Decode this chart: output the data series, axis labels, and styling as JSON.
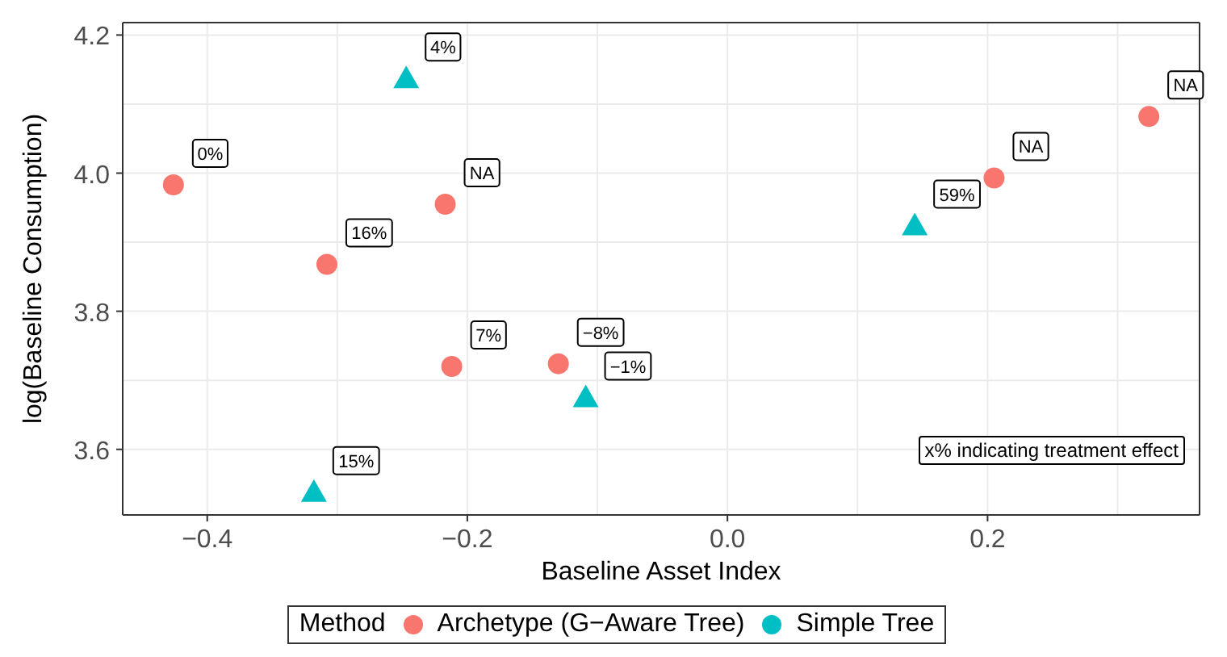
{
  "chart_data": {
    "type": "scatter",
    "xlabel": "Baseline Asset Index",
    "ylabel": "log(Baseline Consumption)",
    "legend_title": "Method",
    "xlim": [
      -0.465,
      0.363
    ],
    "ylim": [
      3.505,
      4.218
    ],
    "xticks": [
      {
        "value": -0.4,
        "label": "−0.4"
      },
      {
        "value": -0.3,
        "label": null
      },
      {
        "value": -0.2,
        "label": "−0.2"
      },
      {
        "value": -0.1,
        "label": null
      },
      {
        "value": 0,
        "label": "0.0"
      },
      {
        "value": 0.1,
        "label": null
      },
      {
        "value": 0.2,
        "label": "0.2"
      },
      {
        "value": 0.3,
        "label": null
      }
    ],
    "yticks": [
      {
        "value": 3.6,
        "label": "3.6"
      },
      {
        "value": 3.7,
        "label": null
      },
      {
        "value": 3.8,
        "label": "3.8"
      },
      {
        "value": 3.9,
        "label": null
      },
      {
        "value": 4.0,
        "label": "4.0"
      },
      {
        "value": 4.1,
        "label": null
      },
      {
        "value": 4.2,
        "label": "4.2"
      }
    ],
    "grid": true,
    "legend": "bottom",
    "annotations": [
      "x% indicating treatment effect",
      {
        "text": "0%",
        "x": -0.426,
        "y": 3.983
      },
      {
        "text": "NA",
        "x": -0.217,
        "y": 3.955
      },
      {
        "text": "16%",
        "x": -0.308,
        "y": 3.868
      },
      {
        "text": "7%",
        "x": -0.212,
        "y": 3.72
      },
      {
        "text": "−8%",
        "x": -0.13,
        "y": 3.724
      },
      {
        "text": "NA",
        "x": 0.205,
        "y": 3.993
      },
      {
        "text": "NA",
        "x": 0.324,
        "y": 4.082
      },
      {
        "text": "4%",
        "x": -0.247,
        "y": 4.137
      },
      {
        "text": "15%",
        "x": -0.318,
        "y": 3.538
      },
      {
        "text": "−1%",
        "x": -0.109,
        "y": 3.675
      },
      {
        "text": "59%",
        "x": 0.144,
        "y": 3.924
      }
    ],
    "series": [
      {
        "name": "Archetype (G−Aware Tree)",
        "color": "#f8766d",
        "marker": "circle",
        "x": [
          -0.426,
          -0.217,
          -0.308,
          -0.212,
          -0.13,
          0.205,
          0.324
        ],
        "values": [
          3.983,
          3.955,
          3.868,
          3.72,
          3.724,
          3.993,
          4.082
        ]
      },
      {
        "name": "Simple Tree",
        "color": "#00bfc4",
        "marker": "triangle",
        "x": [
          -0.247,
          -0.318,
          -0.109,
          0.144
        ],
        "values": [
          4.137,
          3.538,
          3.675,
          3.924
        ]
      }
    ]
  }
}
